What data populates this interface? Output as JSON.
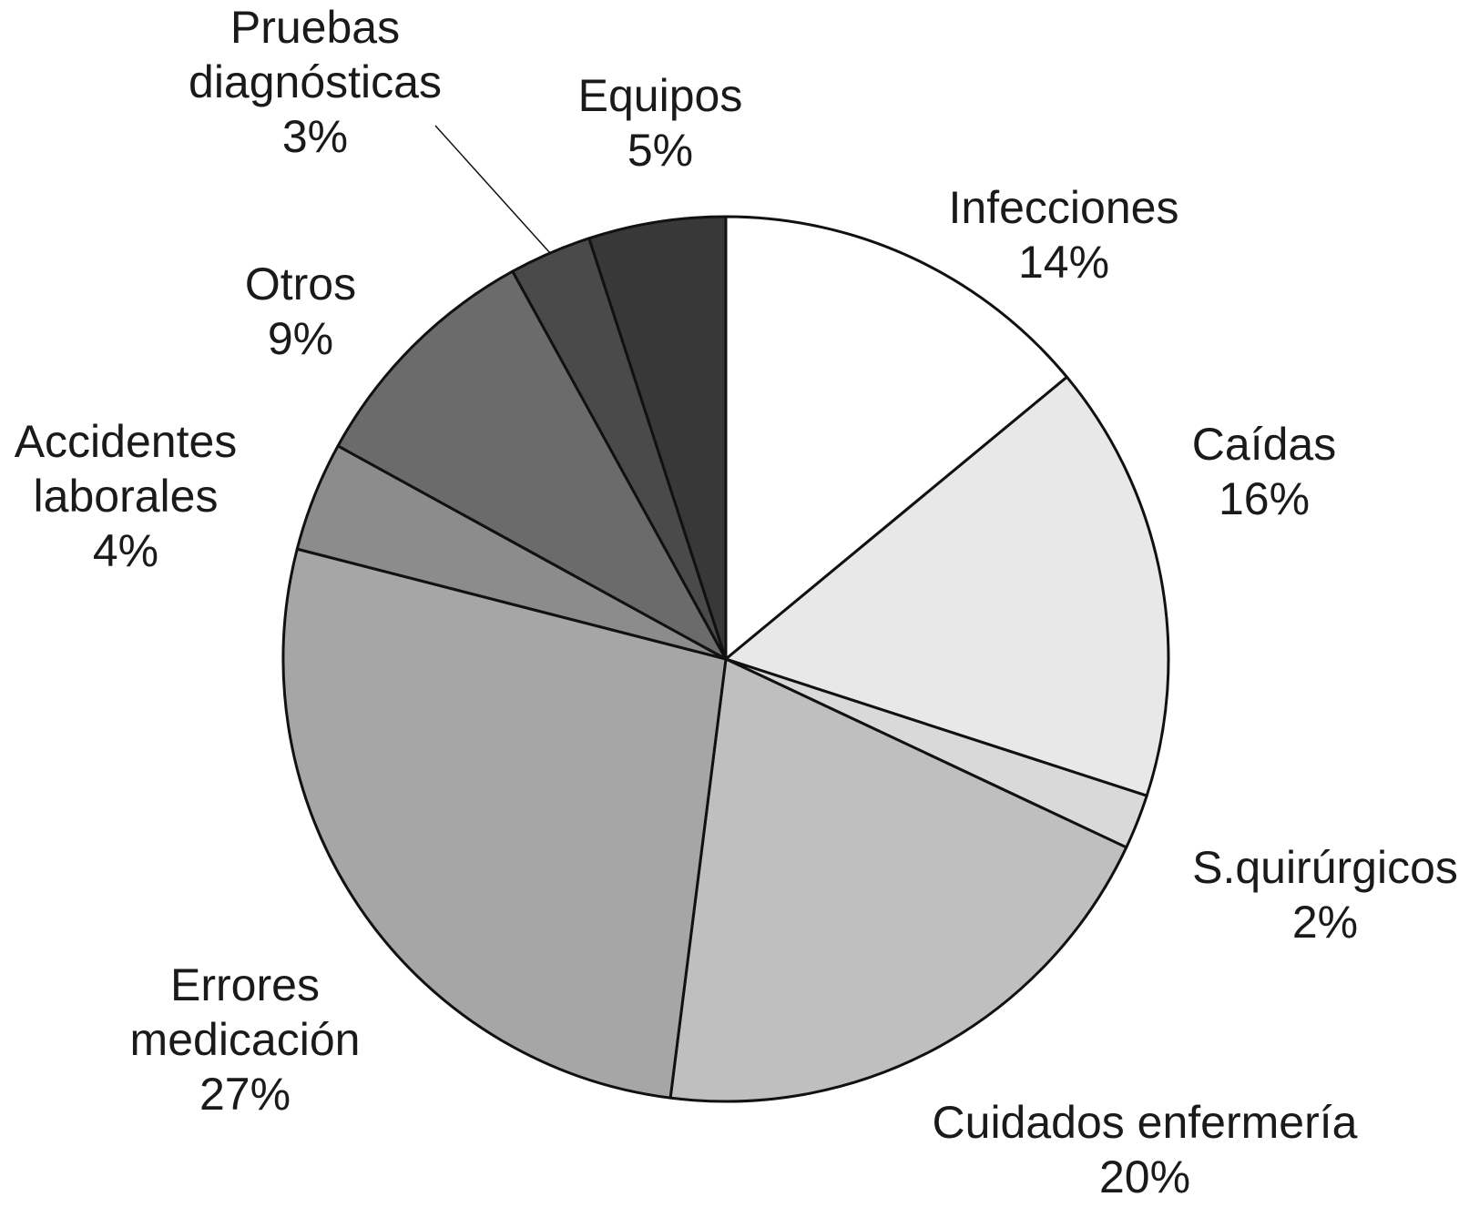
{
  "chart_data": {
    "type": "pie",
    "start_angle_deg": 0,
    "direction": "clockwise",
    "legend": "none",
    "slices": [
      {
        "label_lines": [
          "Infecciones"
        ],
        "value": 14,
        "value_text": "14%",
        "color": "#ffffff"
      },
      {
        "label_lines": [
          "Caídas"
        ],
        "value": 16,
        "value_text": "16%",
        "color": "#e8e8e8"
      },
      {
        "label_lines": [
          "S.quirúrgicos"
        ],
        "value": 2,
        "value_text": "2%",
        "color": "#d9d9d9"
      },
      {
        "label_lines": [
          "Cuidados enfermería"
        ],
        "value": 20,
        "value_text": "20%",
        "color": "#bfbfbf"
      },
      {
        "label_lines": [
          "Errores",
          "medicación"
        ],
        "value": 27,
        "value_text": "27%",
        "color": "#a6a6a6"
      },
      {
        "label_lines": [
          "Accidentes",
          "laborales"
        ],
        "value": 4,
        "value_text": "4%",
        "color": "#8c8c8c"
      },
      {
        "label_lines": [
          "Otros"
        ],
        "value": 9,
        "value_text": "9%",
        "color": "#6b6b6b"
      },
      {
        "label_lines": [
          "Pruebas",
          "diagnósticas"
        ],
        "value": 3,
        "value_text": "3%",
        "color": "#4a4a4a"
      },
      {
        "label_lines": [
          "Equipos"
        ],
        "value": 5,
        "value_text": "5%",
        "color": "#383838"
      }
    ]
  }
}
